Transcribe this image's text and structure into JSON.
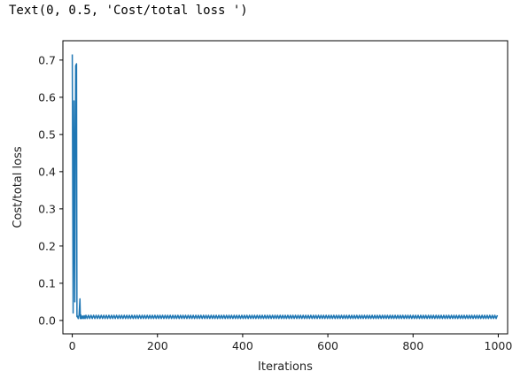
{
  "output_text": "Text(0, 0.5, 'Cost/total loss ')",
  "chart_data": {
    "type": "line",
    "title": "",
    "xlabel": "Iterations",
    "ylabel": "Cost/total loss",
    "xlim": [
      -22,
      1022
    ],
    "ylim": [
      -0.036,
      0.752
    ],
    "xticks": [
      0,
      200,
      400,
      600,
      800,
      1000
    ],
    "xtick_labels": [
      "0",
      "200",
      "400",
      "600",
      "800",
      "1000"
    ],
    "yticks": [
      0.0,
      0.1,
      0.2,
      0.3,
      0.4,
      0.5,
      0.6,
      0.7
    ],
    "ytick_labels": [
      "0.0",
      "0.1",
      "0.2",
      "0.3",
      "0.4",
      "0.5",
      "0.6",
      "0.7"
    ],
    "grid": false,
    "line_color": "#1f77b4",
    "series": [
      {
        "x": [
          0,
          2,
          4,
          6,
          8,
          10,
          11,
          12,
          14,
          16,
          18,
          19,
          20,
          22,
          24,
          26,
          28,
          30
        ],
        "y": [
          0.715,
          0.02,
          0.59,
          0.05,
          0.685,
          0.69,
          0.01,
          0.012,
          0.005,
          0.015,
          0.058,
          0.005,
          0.015,
          0.005,
          0.012,
          0.005,
          0.013,
          0.005
        ],
        "tail": {
          "x_start": 30,
          "x_end": 1000,
          "low": 0.005,
          "high": 0.014,
          "period": 6
        }
      }
    ]
  }
}
